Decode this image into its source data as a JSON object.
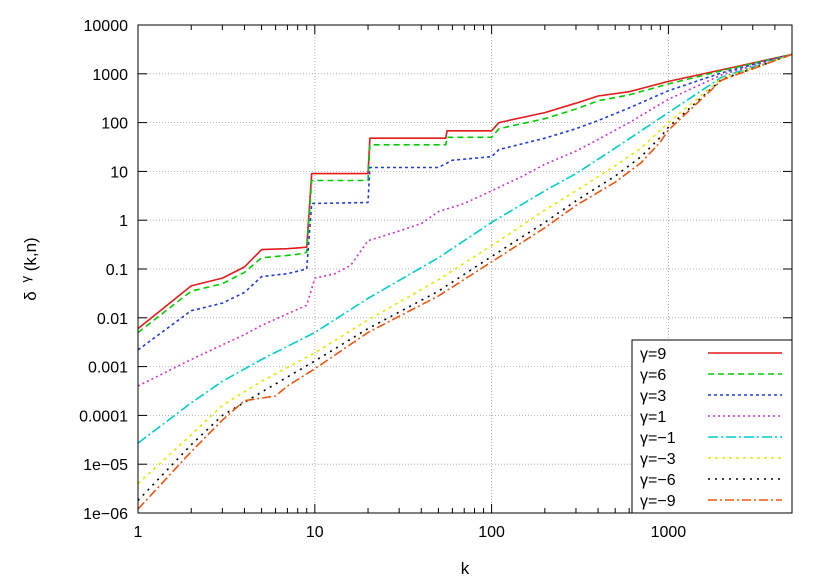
{
  "chart_data": {
    "type": "line",
    "title": "",
    "xlabel": "k",
    "ylabel": "δ γ(k,n)",
    "ylabel_parts": {
      "base": "δ",
      "sup": "γ",
      "rest": "(k,n)"
    },
    "x_scale": "log",
    "y_scale": "log",
    "xlim": [
      1,
      5000
    ],
    "ylim": [
      1e-06,
      10000
    ],
    "grid": true,
    "legend_placement": "bottom-right",
    "x_ticks": [
      1,
      10,
      100,
      1000
    ],
    "x_tick_labels": [
      "1",
      "10",
      "100",
      "1000"
    ],
    "y_ticks": [
      1e-06,
      1e-05,
      0.0001,
      0.001,
      0.01,
      0.1,
      1,
      10,
      100,
      1000,
      10000
    ],
    "y_tick_labels": [
      "1e−06",
      "1e−05",
      "0.0001",
      "0.001",
      "0.01",
      "0.1",
      "1",
      "10",
      "100",
      "1000",
      "10000"
    ],
    "series": [
      {
        "name": "γ=9",
        "color": "#e41a1c",
        "dash": "solid",
        "points": [
          [
            1,
            0.006
          ],
          [
            2,
            0.045
          ],
          [
            3,
            0.065
          ],
          [
            4,
            0.11
          ],
          [
            5,
            0.25
          ],
          [
            7,
            0.26
          ],
          [
            8,
            0.27
          ],
          [
            9,
            0.28
          ],
          [
            9.6,
            9
          ],
          [
            20,
            9
          ],
          [
            20.5,
            48
          ],
          [
            55,
            48
          ],
          [
            56,
            68
          ],
          [
            100,
            68
          ],
          [
            110,
            100
          ],
          [
            200,
            160
          ],
          [
            300,
            250
          ],
          [
            400,
            350
          ],
          [
            600,
            430
          ],
          [
            1000,
            700
          ],
          [
            2000,
            1200
          ],
          [
            5000,
            2500
          ]
        ]
      },
      {
        "name": "γ=6",
        "color": "#00cc00",
        "dash": "6,4",
        "points": [
          [
            1,
            0.005
          ],
          [
            2,
            0.035
          ],
          [
            3,
            0.05
          ],
          [
            4,
            0.085
          ],
          [
            5,
            0.17
          ],
          [
            7,
            0.19
          ],
          [
            8,
            0.2
          ],
          [
            9,
            0.22
          ],
          [
            9.6,
            6.5
          ],
          [
            20,
            6.5
          ],
          [
            20.5,
            35
          ],
          [
            55,
            35
          ],
          [
            56,
            50
          ],
          [
            100,
            50
          ],
          [
            110,
            75
          ],
          [
            200,
            120
          ],
          [
            300,
            190
          ],
          [
            400,
            280
          ],
          [
            600,
            370
          ],
          [
            1000,
            620
          ],
          [
            2000,
            1150
          ],
          [
            5000,
            2500
          ]
        ]
      },
      {
        "name": "γ=3",
        "color": "#1f3cd9",
        "dash": "3,3",
        "points": [
          [
            1,
            0.0022
          ],
          [
            2,
            0.014
          ],
          [
            3,
            0.02
          ],
          [
            4,
            0.033
          ],
          [
            5,
            0.07
          ],
          [
            7,
            0.08
          ],
          [
            8,
            0.09
          ],
          [
            9,
            0.1
          ],
          [
            9.6,
            2.2
          ],
          [
            20,
            2.3
          ],
          [
            20.5,
            12
          ],
          [
            50,
            12
          ],
          [
            60,
            17
          ],
          [
            100,
            20
          ],
          [
            110,
            28
          ],
          [
            200,
            48
          ],
          [
            300,
            75
          ],
          [
            400,
            110
          ],
          [
            600,
            200
          ],
          [
            1000,
            450
          ],
          [
            2000,
            1050
          ],
          [
            5000,
            2500
          ]
        ]
      },
      {
        "name": "γ=1",
        "color": "#cc33cc",
        "dash": "2,3",
        "points": [
          [
            1,
            0.0004
          ],
          [
            2,
            0.0014
          ],
          [
            3,
            0.0028
          ],
          [
            4,
            0.0045
          ],
          [
            5,
            0.007
          ],
          [
            7,
            0.012
          ],
          [
            9,
            0.018
          ],
          [
            10,
            0.065
          ],
          [
            13,
            0.08
          ],
          [
            16,
            0.12
          ],
          [
            20,
            0.38
          ],
          [
            30,
            0.6
          ],
          [
            40,
            0.85
          ],
          [
            50,
            1.5
          ],
          [
            70,
            2.2
          ],
          [
            100,
            4
          ],
          [
            150,
            8
          ],
          [
            200,
            14
          ],
          [
            300,
            26
          ],
          [
            400,
            45
          ],
          [
            600,
            100
          ],
          [
            1000,
            300
          ],
          [
            2000,
            950
          ],
          [
            5000,
            2500
          ]
        ]
      },
      {
        "name": "γ=−1",
        "color": "#00cccc",
        "dash": "10,3,2,3",
        "points": [
          [
            1,
            2.7e-05
          ],
          [
            2,
            0.00018
          ],
          [
            3,
            0.0005
          ],
          [
            5,
            0.0014
          ],
          [
            10,
            0.005
          ],
          [
            20,
            0.025
          ],
          [
            50,
            0.17
          ],
          [
            100,
            0.9
          ],
          [
            200,
            4
          ],
          [
            300,
            9
          ],
          [
            500,
            30
          ],
          [
            1000,
            160
          ],
          [
            2000,
            850
          ],
          [
            5000,
            2500
          ]
        ]
      },
      {
        "name": "γ=−3",
        "color": "#e6e600",
        "dash": "3,4",
        "points": [
          [
            1,
            4e-06
          ],
          [
            2,
            4e-05
          ],
          [
            3,
            0.00016
          ],
          [
            5,
            0.0005
          ],
          [
            10,
            0.0019
          ],
          [
            20,
            0.009
          ],
          [
            50,
            0.06
          ],
          [
            100,
            0.3
          ],
          [
            200,
            1.6
          ],
          [
            300,
            4
          ],
          [
            500,
            13
          ],
          [
            700,
            30
          ],
          [
            1000,
            100
          ],
          [
            2000,
            800
          ],
          [
            5000,
            2500
          ]
        ]
      },
      {
        "name": "γ=−6",
        "color": "#000000",
        "dash": "2,5",
        "points": [
          [
            1,
            1.8e-06
          ],
          [
            2,
            2.5e-05
          ],
          [
            3,
            0.0001
          ],
          [
            5,
            0.0003
          ],
          [
            10,
            0.0013
          ],
          [
            20,
            0.006
          ],
          [
            50,
            0.035
          ],
          [
            100,
            0.18
          ],
          [
            200,
            0.9
          ],
          [
            300,
            2.5
          ],
          [
            500,
            8
          ],
          [
            700,
            20
          ],
          [
            900,
            50
          ],
          [
            1000,
            80
          ],
          [
            2000,
            760
          ],
          [
            5000,
            2500
          ]
        ]
      },
      {
        "name": "γ=−9",
        "color": "#ee5511",
        "dash": "9,3,2,3",
        "points": [
          [
            1,
            1.2e-06
          ],
          [
            2,
            1.8e-05
          ],
          [
            3,
            8e-05
          ],
          [
            4,
            0.0002
          ],
          [
            6,
            0.00025
          ],
          [
            7,
            0.0004
          ],
          [
            10,
            0.0009
          ],
          [
            20,
            0.005
          ],
          [
            50,
            0.028
          ],
          [
            100,
            0.14
          ],
          [
            200,
            0.7
          ],
          [
            300,
            2
          ],
          [
            500,
            6
          ],
          [
            700,
            15
          ],
          [
            900,
            40
          ],
          [
            1000,
            70
          ],
          [
            2000,
            740
          ],
          [
            5000,
            2500
          ]
        ]
      }
    ]
  }
}
